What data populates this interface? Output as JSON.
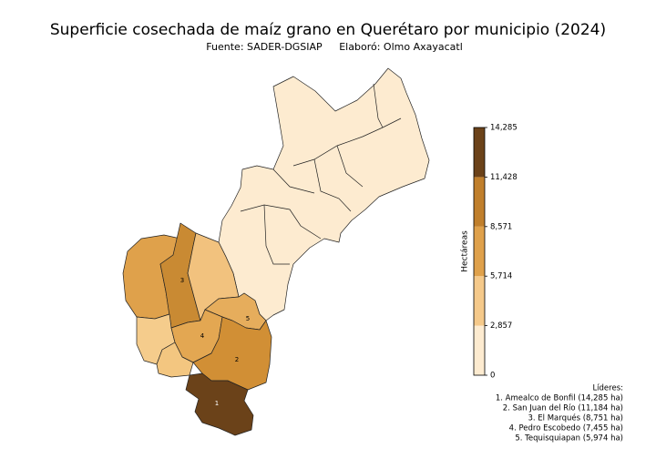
{
  "title": "Superficie cosechada de maíz grano en Querétaro por municipio (2024)",
  "subtitle": {
    "source": "Fuente: SADER-DGSIAP",
    "author": "Elaboró: Olmo Axayacatl"
  },
  "colorbar": {
    "label": "Hectáreas",
    "lim": [
      0,
      14285
    ],
    "ticks": [
      0,
      {
        "value": 2857,
        "label": "2,857"
      },
      {
        "value": 5714,
        "label": "5,714"
      },
      {
        "value": 8571,
        "label": "8,571"
      },
      {
        "value": 11428,
        "label": "11,428"
      },
      {
        "value": 14285,
        "label": "14,285"
      }
    ],
    "colors": [
      "#fdebd0",
      "#f5c98a",
      "#dfa14b",
      "#c07f2c",
      "#6b4219"
    ]
  },
  "map_labels": [
    "1",
    "2",
    "3",
    "4",
    "5"
  ],
  "leaders": {
    "title": "Líderes:",
    "items": [
      "1. Amealco de Bonfil (14,285 ha)",
      "2. San Juan del Río (11,184 ha)",
      "3. El Marqués (8,751 ha)",
      "4. Pedro Escobedo (7,455 ha)",
      "5. Tequisquiapan (5,974 ha)"
    ]
  }
}
